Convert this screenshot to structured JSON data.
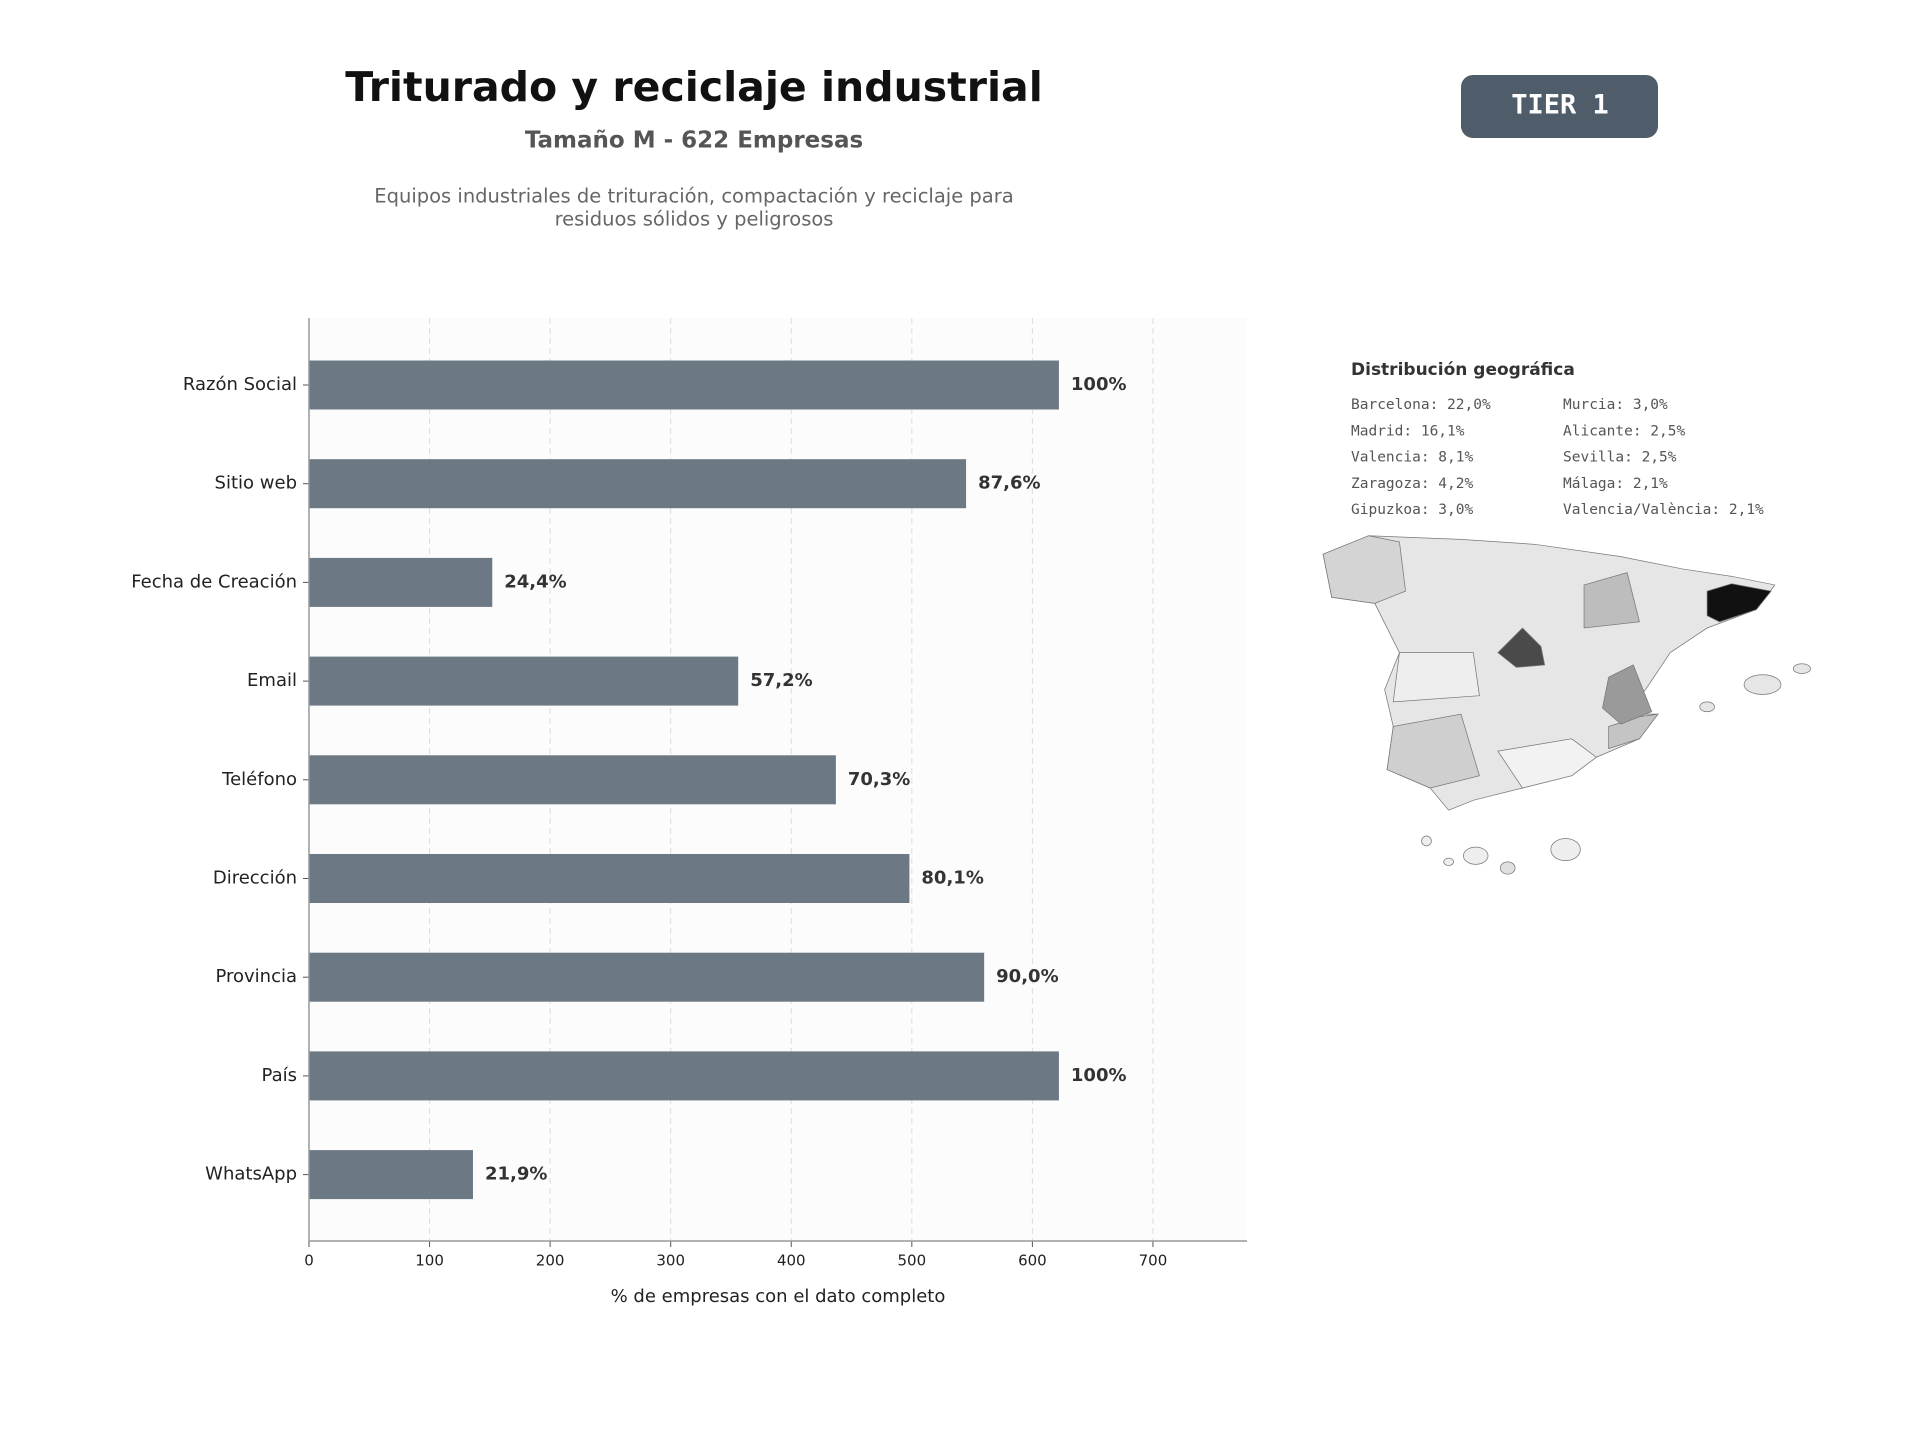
{
  "header": {
    "title": "Triturado y reciclaje industrial",
    "subtitle": "Tamaño M - 622 Empresas",
    "description": [
      "Equipos industriales de trituración, compactación y reciclaje para",
      "residuos sólidos y peligrosos"
    ],
    "badge": "TIER 1"
  },
  "chart_data": {
    "type": "bar",
    "orientation": "horizontal",
    "categories": [
      "Razón Social",
      "Sitio web",
      "Fecha de Creación",
      "Email",
      "Teléfono",
      "Dirección",
      "Provincia",
      "País",
      "WhatsApp"
    ],
    "values": [
      622,
      545,
      152,
      356,
      437,
      498,
      560,
      622,
      136
    ],
    "value_labels": [
      "100%",
      "87,6%",
      "24,4%",
      "57,2%",
      "70,3%",
      "80,1%",
      "90,0%",
      "100%",
      "21,9%"
    ],
    "color": "#6c7883",
    "xlabel": "% de empresas con el dato completo",
    "xlim": [
      0,
      778
    ],
    "xticks": [
      0,
      100,
      200,
      300,
      400,
      500,
      600,
      700
    ],
    "grid": true
  },
  "geo": {
    "title": "Distribución geográfica",
    "entries": [
      "Barcelona: 22,0%",
      "Madrid: 16,1%",
      "Valencia: 8,1%",
      "Zaragoza: 4,2%",
      "Gipuzkoa: 3,0%",
      "Murcia: 3,0%",
      "Alicante: 2,5%",
      "Sevilla: 2,5%",
      "Málaga: 2,1%",
      "Valencia/València: 2,1%"
    ]
  }
}
